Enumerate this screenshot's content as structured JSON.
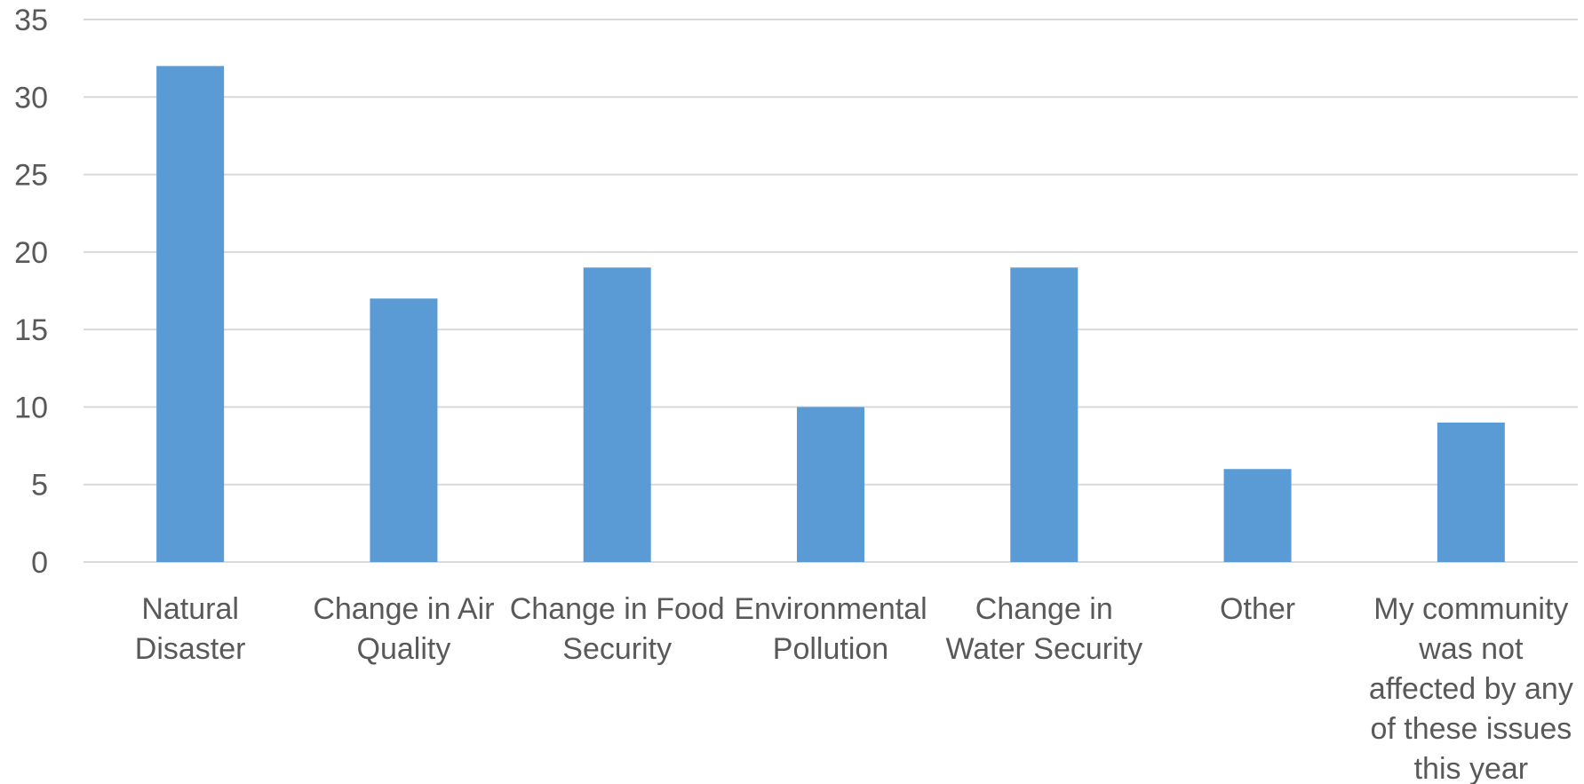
{
  "chart_data": {
    "type": "bar",
    "title": "",
    "xlabel": "",
    "ylabel": "",
    "ylim": [
      0,
      35
    ],
    "yticks": [
      0,
      5,
      10,
      15,
      20,
      25,
      30,
      35
    ],
    "grid": true,
    "legend": "none",
    "bar_color": "#5b9bd5",
    "categories": [
      [
        "Natural",
        "Disaster"
      ],
      [
        "Change in Air",
        "Quality"
      ],
      [
        "Change in Food",
        "Security"
      ],
      [
        "Environmental",
        "Pollution"
      ],
      [
        "Change in",
        "Water Security"
      ],
      [
        "Other"
      ],
      [
        "My community",
        "was not",
        "affected by any",
        "of these issues",
        "this year"
      ]
    ],
    "values": [
      32,
      17,
      19,
      10,
      19,
      6,
      9
    ]
  }
}
